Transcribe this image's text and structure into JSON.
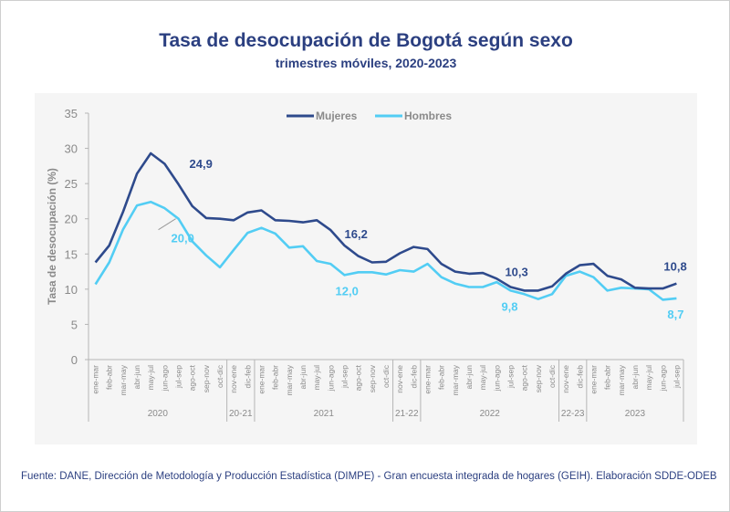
{
  "header": {
    "title": "Tasa de desocupación de Bogotá según sexo",
    "subtitle": "trimestres móviles, 2020-2023"
  },
  "footer": {
    "source": "Fuente: DANE, Dirección de Metodología y Producción Estadística (DIMPE) - Gran encuesta integrada de hogares (GEIH). Elaboración SDDE-ODEB"
  },
  "chart_data": {
    "type": "line",
    "title": "Tasa de desocupación de Bogotá según sexo",
    "subtitle": "trimestres móviles, 2020-2023",
    "ylabel": "Tasa de desocupación (%)",
    "ylim": [
      0,
      35
    ],
    "yticks": [
      0,
      5,
      10,
      15,
      20,
      25,
      30,
      35
    ],
    "grid": false,
    "legend": "top-center",
    "categories": [
      "ene-mar",
      "feb-abr",
      "mar-may",
      "abr-jun",
      "may-jul",
      "jun-ago",
      "jul-sep",
      "ago-oct",
      "sep-nov",
      "oct-dic",
      "nov-ene",
      "dic-feb",
      "ene-mar",
      "feb-abr",
      "mar-may",
      "abr-jun",
      "may-jul",
      "jun-ago",
      "jul-sep",
      "ago-oct",
      "sep-nov",
      "oct-dic",
      "nov-ene",
      "dic-feb",
      "ene-mar",
      "feb-abr",
      "mar-may",
      "abr-jun",
      "may-jul",
      "jun-ago",
      "jul-sep",
      "ago-oct",
      "sep-nov",
      "oct-dic",
      "nov-ene",
      "dic-feb",
      "ene-mar",
      "feb-abr",
      "mar-may",
      "abr-jun",
      "may-jul",
      "jun-ago",
      "jul-sep"
    ],
    "groups": [
      {
        "label": "2020",
        "count": 10
      },
      {
        "label": "20-21",
        "count": 2
      },
      {
        "label": "2021",
        "count": 10
      },
      {
        "label": "21-22",
        "count": 2
      },
      {
        "label": "2022",
        "count": 10
      },
      {
        "label": "22-23",
        "count": 2
      },
      {
        "label": "2023",
        "count": 7
      }
    ],
    "series": [
      {
        "name": "Mujeres",
        "color": "#2e4a8c",
        "values": [
          13.8,
          16.2,
          21.0,
          26.4,
          29.3,
          27.8,
          24.9,
          21.8,
          20.1,
          20.0,
          19.8,
          20.9,
          21.2,
          19.8,
          19.7,
          19.5,
          19.8,
          18.4,
          16.2,
          14.7,
          13.8,
          13.9,
          15.1,
          16.0,
          15.7,
          13.6,
          12.5,
          12.2,
          12.3,
          11.5,
          10.3,
          9.8,
          9.8,
          10.4,
          12.2,
          13.4,
          13.6,
          11.9,
          11.4,
          10.2,
          10.1,
          10.1,
          10.8
        ],
        "labels": [
          {
            "index": 6,
            "text": "24,9"
          },
          {
            "index": 18,
            "text": "16,2"
          },
          {
            "index": 30,
            "text": "10,3"
          },
          {
            "index": 42,
            "text": "10,8"
          }
        ]
      },
      {
        "name": "Hombres",
        "color": "#52cdf4",
        "values": [
          10.7,
          13.8,
          18.5,
          21.9,
          22.4,
          21.5,
          20.0,
          16.8,
          14.8,
          13.1,
          15.6,
          18.0,
          18.7,
          17.9,
          15.9,
          16.1,
          14.0,
          13.6,
          12.0,
          12.4,
          12.4,
          12.1,
          12.7,
          12.5,
          13.6,
          11.7,
          10.8,
          10.3,
          10.3,
          11.0,
          9.8,
          9.3,
          8.6,
          9.3,
          11.9,
          12.5,
          11.7,
          9.8,
          10.2,
          10.1,
          10.0,
          8.5,
          8.7
        ],
        "labels": [
          {
            "index": 6,
            "text": "20,0"
          },
          {
            "index": 18,
            "text": "12,0"
          },
          {
            "index": 30,
            "text": "9,8"
          },
          {
            "index": 42,
            "text": "8,7"
          }
        ]
      }
    ]
  }
}
